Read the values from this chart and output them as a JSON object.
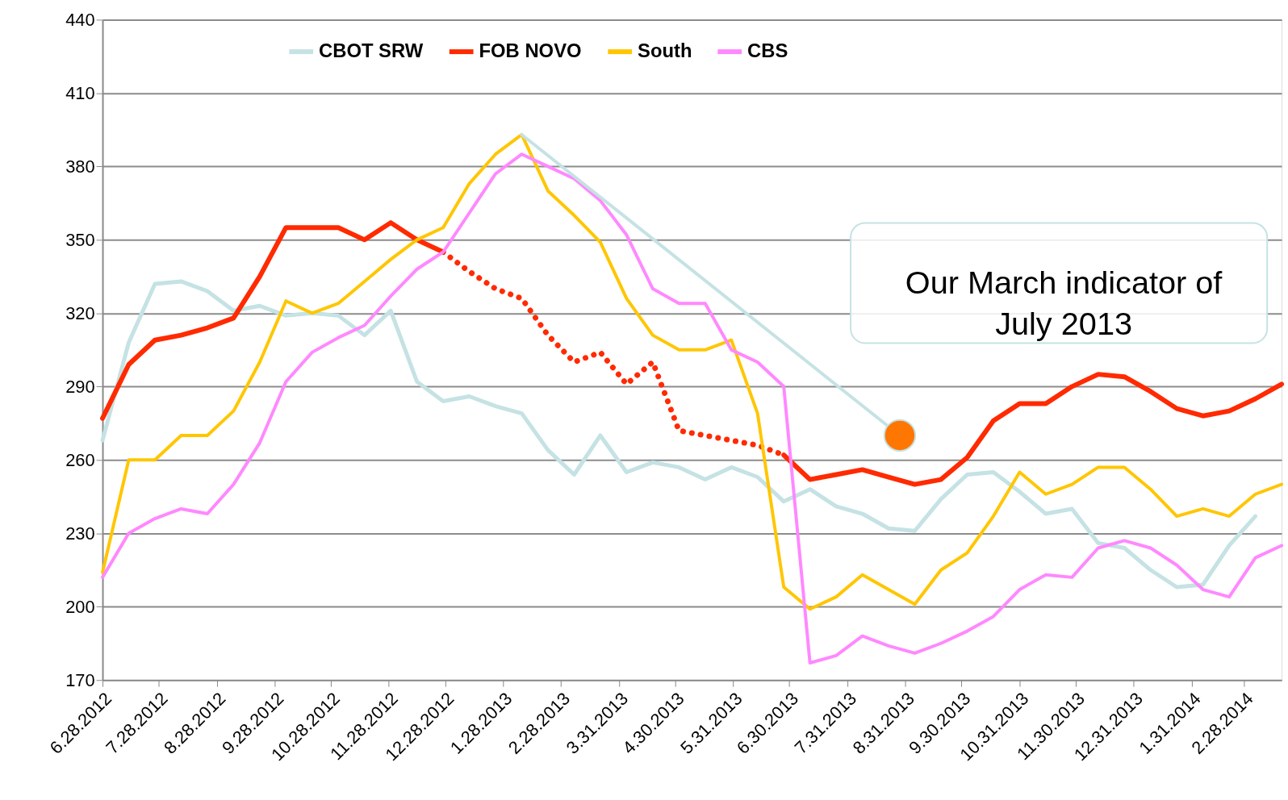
{
  "chart_data": {
    "type": "line",
    "x": [
      "2012-06-28",
      "2012-07-12",
      "2012-07-26",
      "2012-08-09",
      "2012-08-23",
      "2012-09-06",
      "2012-09-20",
      "2012-10-04",
      "2012-10-18",
      "2012-11-01",
      "2012-11-15",
      "2012-11-29",
      "2012-12-13",
      "2012-12-27",
      "2013-01-10",
      "2013-01-24",
      "2013-02-07",
      "2013-02-21",
      "2013-03-07",
      "2013-03-21",
      "2013-04-04",
      "2013-04-18",
      "2013-05-02",
      "2013-05-16",
      "2013-05-30",
      "2013-06-13",
      "2013-06-27",
      "2013-07-11",
      "2013-07-25",
      "2013-08-08",
      "2013-08-22",
      "2013-09-05",
      "2013-09-19",
      "2013-10-03",
      "2013-10-17",
      "2013-10-31",
      "2013-11-14",
      "2013-11-28",
      "2013-12-12",
      "2013-12-26",
      "2014-01-09",
      "2014-01-23",
      "2014-02-06",
      "2014-02-20",
      "2014-03-06",
      "2014-03-20"
    ],
    "series": [
      {
        "name": "CBOT SRW",
        "color": "#c5e2e4",
        "values": [
          268,
          308,
          332,
          333,
          329,
          321,
          323,
          319,
          320,
          319,
          311,
          321,
          292,
          284,
          286,
          282,
          279,
          264,
          254,
          270,
          255,
          259,
          257,
          252,
          257,
          253,
          243,
          248,
          241,
          238,
          232,
          231,
          244,
          254,
          255,
          247,
          238,
          240,
          226,
          224,
          215,
          208,
          209,
          225,
          237,
          null
        ]
      },
      {
        "name": "FOB NOVO",
        "color": "#ff2a00",
        "values": [
          277,
          299,
          309,
          311,
          314,
          318,
          335,
          355,
          355,
          355,
          350,
          357,
          350,
          345,
          null,
          null,
          null,
          null,
          null,
          null,
          null,
          null,
          null,
          null,
          null,
          null,
          262,
          252,
          254,
          256,
          253,
          250,
          252,
          261,
          276,
          283,
          283,
          290,
          295,
          294,
          288,
          281,
          278,
          280,
          285,
          291
        ]
      },
      {
        "color": "#ff2a00",
        "line_style": "dotted",
        "values": [
          null,
          null,
          null,
          null,
          null,
          null,
          null,
          null,
          null,
          null,
          null,
          null,
          null,
          345,
          337,
          330,
          326,
          311,
          300,
          304,
          291,
          300,
          272,
          270,
          268,
          266,
          262,
          null,
          null,
          null,
          null,
          null,
          null,
          null,
          null,
          null,
          null,
          null,
          null,
          null,
          null,
          null,
          null,
          null,
          null,
          null
        ]
      },
      {
        "name": "South",
        "color": "#ffc600",
        "values": [
          214,
          260,
          260,
          270,
          270,
          280,
          300,
          325,
          320,
          324,
          333,
          342,
          350,
          355,
          373,
          385,
          393,
          370,
          360,
          349,
          326,
          311,
          305,
          305,
          309,
          279,
          208,
          199,
          204,
          213,
          207,
          201,
          215,
          222,
          237,
          255,
          246,
          250,
          257,
          257,
          248,
          237,
          240,
          237,
          246,
          250
        ]
      },
      {
        "name": "CBS",
        "color": "#ff88ff",
        "values": [
          212,
          230,
          236,
          240,
          238,
          250,
          267,
          292,
          304,
          310,
          315,
          327,
          338,
          345,
          361,
          377,
          385,
          380,
          375,
          366,
          352,
          330,
          324,
          324,
          305,
          300,
          290,
          177,
          180,
          188,
          184,
          181,
          185,
          190,
          196,
          207,
          213,
          212,
          224,
          227,
          224,
          217,
          207,
          204,
          220,
          225
        ]
      }
    ],
    "xlim": [
      "2012-06-28",
      "2014-03-20"
    ],
    "xticks": [
      {
        "value": "2012-06-28",
        "label": "6.28.2012"
      },
      {
        "value": "2012-07-28",
        "label": "7.28.2012"
      },
      {
        "value": "2012-08-28",
        "label": "8.28.2012"
      },
      {
        "value": "2012-09-28",
        "label": "9.28.2012"
      },
      {
        "value": "2012-10-28",
        "label": "10.28.2012"
      },
      {
        "value": "2012-11-28",
        "label": "11.28.2012"
      },
      {
        "value": "2012-12-28",
        "label": "12.28.2012"
      },
      {
        "value": "2013-01-28",
        "label": "1.28.2013"
      },
      {
        "value": "2013-02-28",
        "label": "2.28.2013"
      },
      {
        "value": "2013-03-31",
        "label": "3.31.2013"
      },
      {
        "value": "2013-04-30",
        "label": "4.30.2013"
      },
      {
        "value": "2013-05-31",
        "label": "5.31.2013"
      },
      {
        "value": "2013-06-30",
        "label": "6.30.2013"
      },
      {
        "value": "2013-07-31",
        "label": "7.31.2013"
      },
      {
        "value": "2013-08-31",
        "label": "8.31.2013"
      },
      {
        "value": "2013-09-30",
        "label": "9.30.2013"
      },
      {
        "value": "2013-10-31",
        "label": "10.31.2013"
      },
      {
        "value": "2013-11-30",
        "label": "11.30.2013"
      },
      {
        "value": "2013-12-31",
        "label": "12.31.2013"
      },
      {
        "value": "2014-01-31",
        "label": "1.31.2014"
      },
      {
        "value": "2014-02-28",
        "label": "2.28.2014"
      }
    ],
    "ylim": [
      170,
      440
    ],
    "yticks": [
      170,
      200,
      230,
      260,
      290,
      320,
      350,
      380,
      410,
      440
    ],
    "grid": "y",
    "legend": "top",
    "marker": "none",
    "line_style": "solid",
    "annotations": [
      {
        "text": "Our March indicator of July 2013",
        "x": "2013-08-28",
        "y": 270
      }
    ]
  }
}
